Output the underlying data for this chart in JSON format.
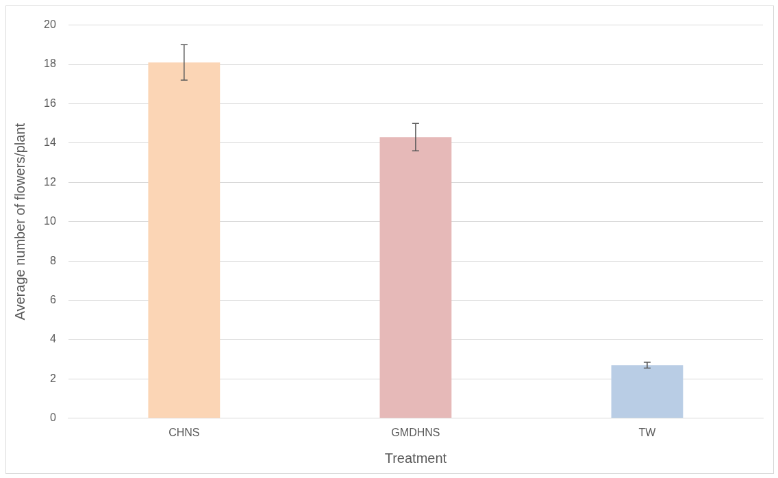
{
  "chart_data": {
    "type": "bar",
    "xlabel": "Treatment",
    "ylabel": "Average number of flowers/plant",
    "categories": [
      "CHNS",
      "GMDHNS",
      "TW"
    ],
    "values": [
      18.1,
      14.3,
      2.7
    ],
    "colors": [
      "#fbd5b5",
      "#e6b9b8",
      "#b9cde5"
    ],
    "errors": [
      0.9,
      0.7,
      0.15
    ],
    "ylim": [
      0,
      20
    ],
    "yticks": [
      0,
      2,
      4,
      6,
      8,
      10,
      12,
      14,
      16,
      18,
      20
    ],
    "grid": "y",
    "legend": false
  }
}
